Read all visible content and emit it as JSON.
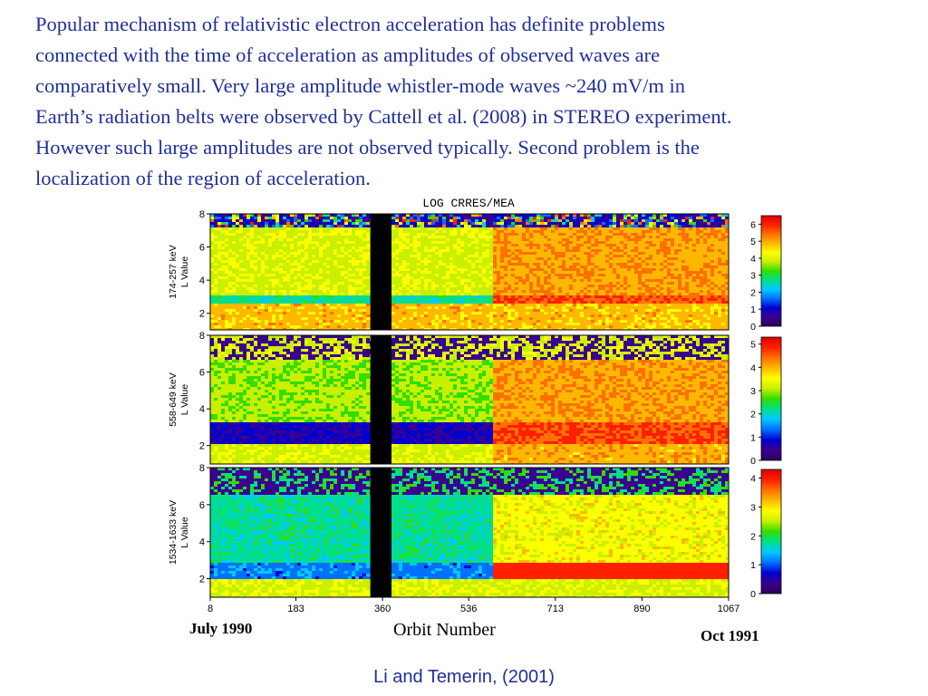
{
  "intro": {
    "lines": [
      "Popular mechanism of relativistic electron acceleration has definite problems",
      "connected with the time of acceleration as amplitudes of observed waves are",
      "comparatively small. Very large amplitude whistler-mode waves ~240 mV/m in",
      "Earth’s radiation belts were observed by Cattell et al. (2008) in STEREO experiment.",
      "However such large amplitudes are not observed typically. Second problem is the",
      "localization of the region of acceleration."
    ]
  },
  "captions": {
    "start": "July 1990",
    "orbit": "Orbit Number",
    "end": "Oct 1991"
  },
  "citation": "Li and Temerin, (2001)",
  "chart_data": {
    "type": "heatmap",
    "title": "LOG CRRES/MEA",
    "x_ticks": [
      "8",
      "183",
      "360",
      "536",
      "713",
      "890",
      "1067"
    ],
    "xlim": [
      8,
      1067
    ],
    "data_gap_orbits": [
      335,
      378
    ],
    "panels": [
      {
        "ylabel_line1": "174-257 keV",
        "ylabel_line2": "L Value",
        "y_ticks": [
          "2",
          "4",
          "6",
          "8"
        ],
        "ylim": [
          1,
          8
        ],
        "colorbar_ticks": [
          "0",
          "1",
          "2",
          "3",
          "4",
          "5",
          "6"
        ],
        "colorbar_range": [
          0,
          6.5
        ]
      },
      {
        "ylabel_line1": "558-649 keV",
        "ylabel_line2": "L Value",
        "y_ticks": [
          "2",
          "4",
          "6",
          "8"
        ],
        "ylim": [
          1,
          8
        ],
        "colorbar_ticks": [
          "0",
          "1",
          "2",
          "3",
          "4",
          "5"
        ],
        "colorbar_range": [
          0,
          5.3
        ]
      },
      {
        "ylabel_line1": "1534-1633 keV",
        "ylabel_line2": "L Value",
        "y_ticks": [
          "2",
          "4",
          "6",
          "8"
        ],
        "ylim": [
          1,
          8
        ],
        "colorbar_ticks": [
          "0",
          "1",
          "2",
          "3",
          "4"
        ],
        "colorbar_range": [
          0,
          4.3
        ]
      }
    ],
    "colorscale": [
      "#2a0055",
      "#3a0090",
      "#0000d0",
      "#0070ff",
      "#00c8ff",
      "#00e08a",
      "#33dd00",
      "#c8f000",
      "#ffff00",
      "#ffb800",
      "#ff7000",
      "#ff2000",
      "#e00000"
    ]
  }
}
